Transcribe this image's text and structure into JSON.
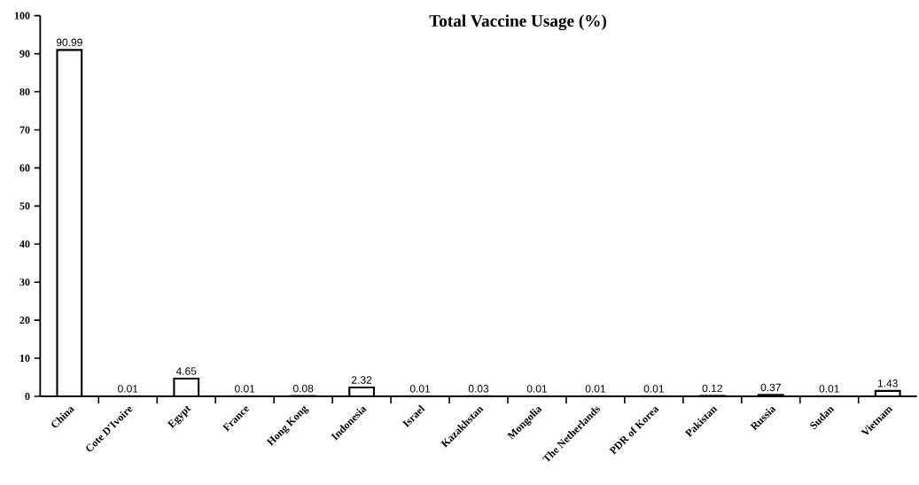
{
  "chart_data": {
    "type": "bar",
    "title": "Total Vaccine Usage (%)",
    "categories": [
      "China",
      "Cote D'Ivoire",
      "Egypt",
      "France",
      "Hong Kong",
      "Indonesia",
      "Israel",
      "Kazakhstan",
      "Mongolia",
      "The Netherlands",
      "PDR of Korea",
      "Pakistan",
      "Russia",
      "Sudan",
      "Vietnam"
    ],
    "values": [
      90.99,
      0.01,
      4.65,
      0.01,
      0.08,
      2.32,
      0.01,
      0.03,
      0.01,
      0.01,
      0.01,
      0.12,
      0.37,
      0.01,
      1.43
    ],
    "color": "#ffffff",
    "ylim": [
      0,
      100
    ],
    "yticks": [
      0,
      10,
      20,
      30,
      40,
      50,
      60,
      70,
      80,
      90,
      100
    ],
    "data_labels": true
  }
}
